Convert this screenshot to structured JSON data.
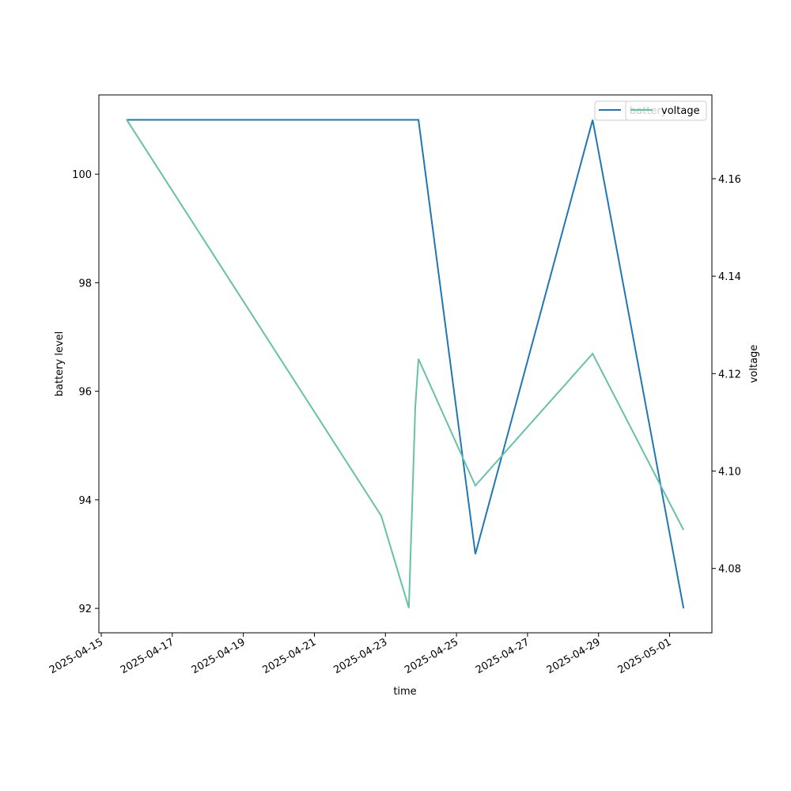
{
  "chart_data": {
    "type": "line",
    "xlabel": "time",
    "ylabel": "battery level",
    "y2label": "voltage",
    "xlim": [
      "2025-04-14T22:24",
      "2025-05-02T04:34"
    ],
    "xticks": [
      "2025-04-15",
      "2025-04-17",
      "2025-04-19",
      "2025-04-21",
      "2025-04-23",
      "2025-04-25",
      "2025-04-27",
      "2025-04-29",
      "2025-05-01"
    ],
    "ylim": [
      91.55,
      101.46
    ],
    "yticks": [
      92,
      94,
      96,
      98,
      100
    ],
    "y2lim": [
      4.0668,
      4.1772
    ],
    "y2ticks": [
      4.08,
      {
        "value": 4.1,
        "label": "4.10"
      },
      4.12,
      4.14,
      4.16
    ],
    "series": [
      {
        "name": "battery",
        "color": "#1f77b4",
        "x": [
          "2025-04-15T17:00",
          "2025-04-23T22:20",
          "2025-04-25T12:45",
          "2025-04-28T20:00",
          "2025-05-01T09:25"
        ],
        "values": [
          101,
          101,
          93,
          101,
          92
        ]
      },
      {
        "name": "voltage",
        "color": "#66c2a5",
        "axis": "y2",
        "x": [
          "2025-04-15T17:00",
          "2025-04-22T21:10",
          "2025-04-23T15:50",
          "2025-04-23T20:10",
          "2025-04-23T22:20",
          "2025-04-25T12:45",
          "2025-04-28T20:00",
          "2025-05-01T09:25"
        ],
        "values": [
          4.1722,
          4.0908,
          4.0719,
          4.1131,
          4.123,
          4.097,
          4.1241,
          4.0879
        ]
      }
    ]
  }
}
